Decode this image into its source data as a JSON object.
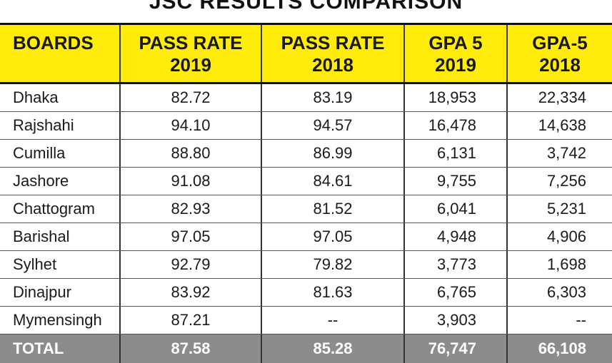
{
  "title": "JSC RESULTS COMPARISON",
  "colors": {
    "header_bg": "#ffec0a",
    "total_bg": "#8c8c8c",
    "rule": "#111111"
  },
  "columns": [
    {
      "line1": "BOARDS",
      "line2": ""
    },
    {
      "line1": "PASS RATE",
      "line2": "2019"
    },
    {
      "line1": "PASS RATE",
      "line2": "2018"
    },
    {
      "line1": "GPA 5",
      "line2": "2019"
    },
    {
      "line1": "GPA-5",
      "line2": "2018"
    }
  ],
  "rows": [
    [
      "Dhaka",
      "82.72",
      "83.19",
      "18,953",
      "22,334"
    ],
    [
      "Rajshahi",
      "94.10",
      "94.57",
      "16,478",
      "14,638"
    ],
    [
      "Cumilla",
      "88.80",
      "86.99",
      "6,131",
      "3,742"
    ],
    [
      "Jashore",
      "91.08",
      "84.61",
      "9,755",
      "7,256"
    ],
    [
      "Chattogram",
      "82.93",
      "81.52",
      "6,041",
      "5,231"
    ],
    [
      "Barishal",
      "97.05",
      "97.05",
      "4,948",
      "4,906"
    ],
    [
      "Sylhet",
      "92.79",
      "79.82",
      "3,773",
      "1,698"
    ],
    [
      "Dinajpur",
      "83.92",
      "81.63",
      "6,765",
      "6,303"
    ],
    [
      "Mymensingh",
      "87.21",
      "--",
      "3,903",
      "--"
    ]
  ],
  "total": [
    "TOTAL",
    "87.58",
    "85.28",
    "76,747",
    "66,108"
  ]
}
